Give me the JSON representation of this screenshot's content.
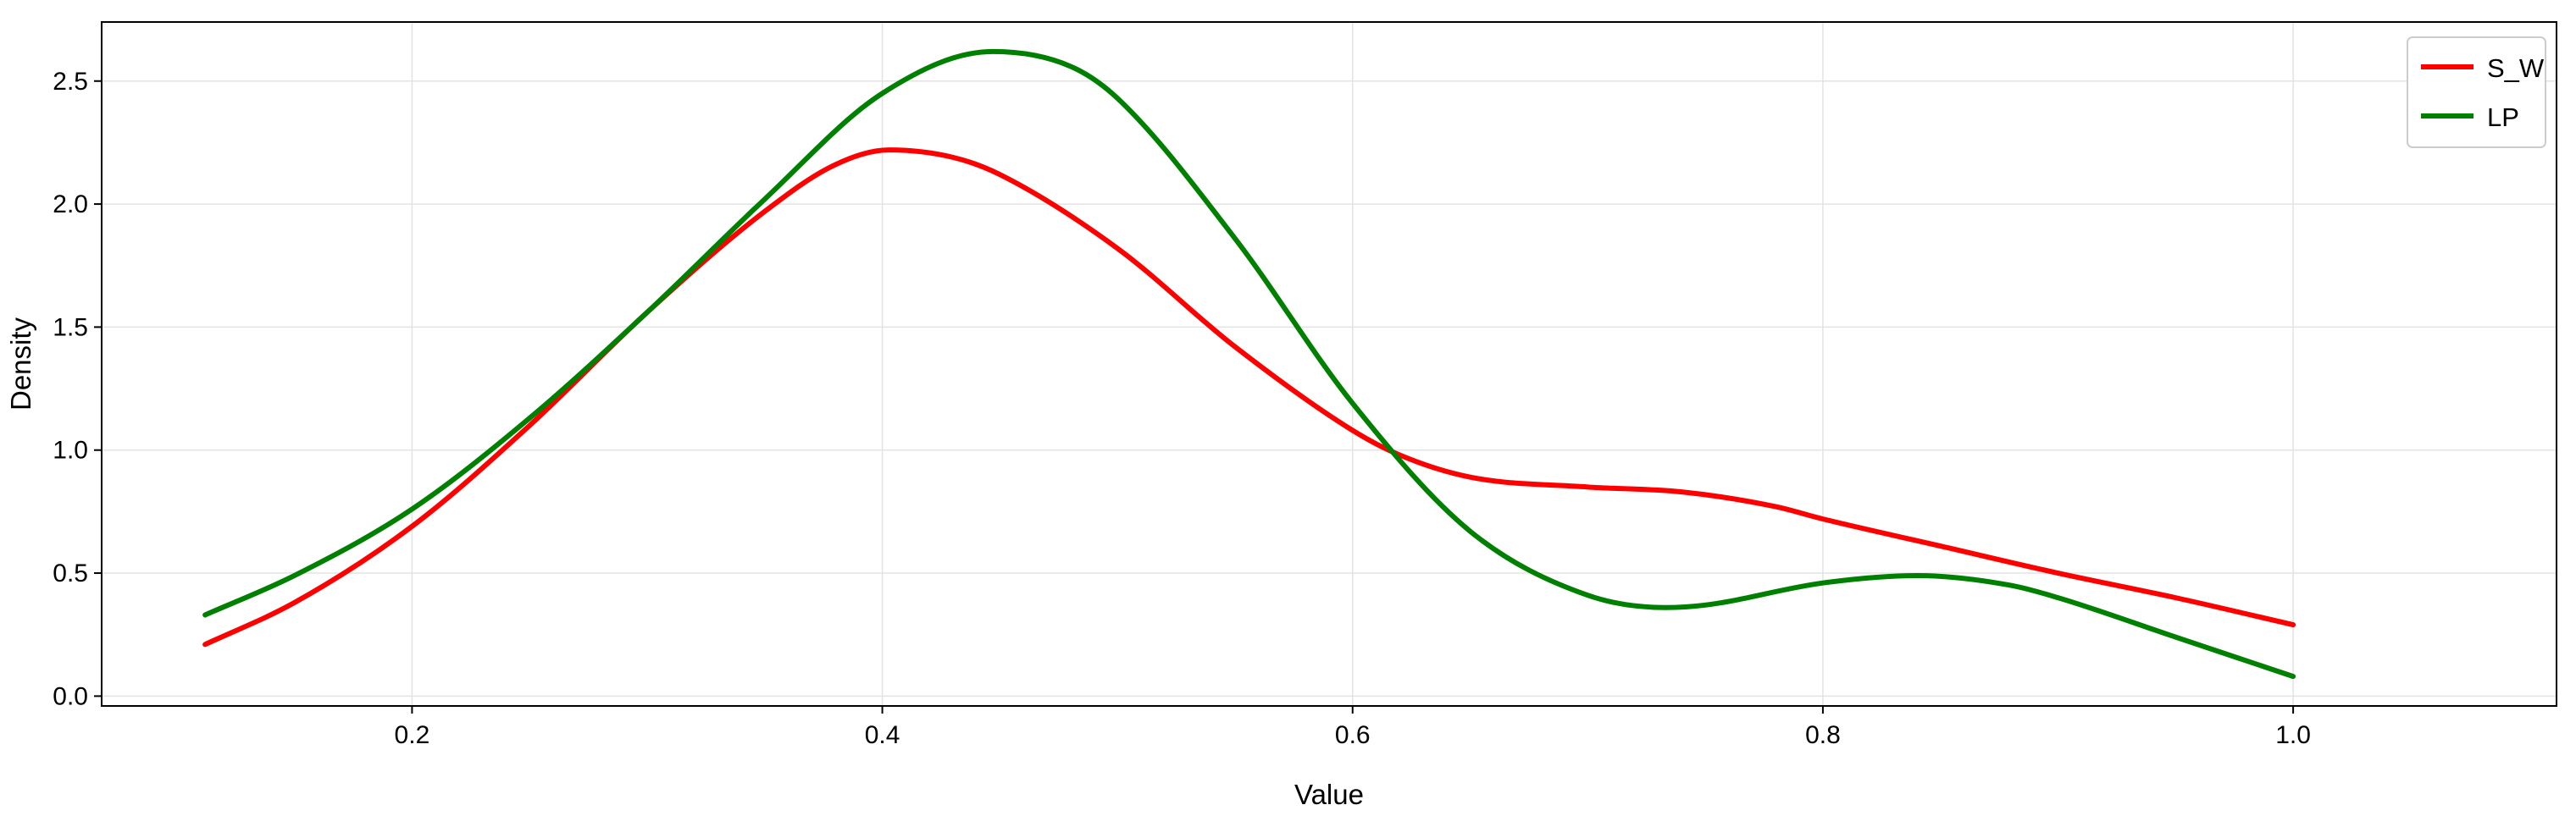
{
  "chart_data": {
    "type": "line",
    "title": "",
    "xlabel": "Value",
    "ylabel": "Density",
    "xlim": [
      0.068,
      1.112
    ],
    "ylim": [
      -0.04,
      2.74
    ],
    "xticks": [
      0.2,
      0.4,
      0.6,
      0.8,
      1.0
    ],
    "xtick_labels": [
      "0.2",
      "0.4",
      "0.6",
      "0.8",
      "1.0"
    ],
    "yticks": [
      0.0,
      0.5,
      1.0,
      1.5,
      2.0,
      2.5
    ],
    "ytick_labels": [
      "0.0",
      "0.5",
      "1.0",
      "1.5",
      "2.0",
      "2.5"
    ],
    "grid": true,
    "legend_position": "top-right",
    "series": [
      {
        "name": "S_W",
        "color": "#ff0000",
        "x": [
          0.112,
          0.15,
          0.2,
          0.25,
          0.3,
          0.35,
          0.38,
          0.403,
          0.43,
          0.45,
          0.5,
          0.55,
          0.6,
          0.62,
          0.65,
          0.7,
          0.74,
          0.78,
          0.8,
          0.85,
          0.9,
          0.95,
          1.0
        ],
        "y": [
          0.21,
          0.38,
          0.69,
          1.1,
          1.56,
          1.97,
          2.16,
          2.22,
          2.19,
          2.12,
          1.82,
          1.42,
          1.08,
          0.98,
          0.89,
          0.85,
          0.83,
          0.77,
          0.72,
          0.61,
          0.5,
          0.4,
          0.29
        ]
      },
      {
        "name": "LP",
        "color": "#008000",
        "x": [
          0.112,
          0.15,
          0.2,
          0.25,
          0.3,
          0.35,
          0.4,
          0.447,
          0.48,
          0.5,
          0.55,
          0.6,
          0.65,
          0.7,
          0.733,
          0.75,
          0.8,
          0.84,
          0.88,
          0.9,
          0.95,
          1.0
        ],
        "y": [
          0.33,
          0.49,
          0.76,
          1.13,
          1.56,
          2.02,
          2.45,
          2.62,
          2.56,
          2.43,
          1.86,
          1.19,
          0.67,
          0.41,
          0.36,
          0.37,
          0.46,
          0.49,
          0.45,
          0.4,
          0.24,
          0.08
        ]
      }
    ]
  }
}
